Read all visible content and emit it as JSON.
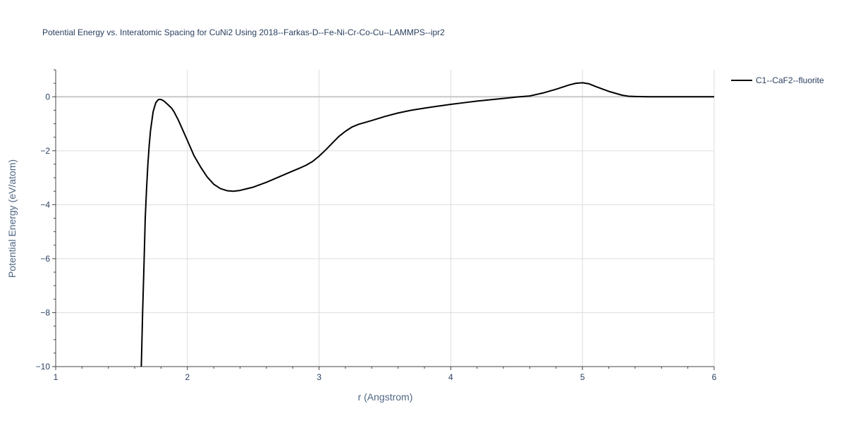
{
  "chart_data": {
    "type": "line",
    "title": "Potential Energy vs. Interatomic Spacing for CuNi2 Using 2018--Farkas-D--Fe-Ni-Cr-Co-Cu--LAMMPS--ipr2",
    "xlabel": "r (Angstrom)",
    "ylabel": "Potential Energy (eV/atom)",
    "xlim": [
      1,
      6
    ],
    "ylim": [
      -10,
      1
    ],
    "xticks": [
      1,
      2,
      3,
      4,
      5,
      6
    ],
    "yticks": [
      0,
      -2,
      -4,
      -6,
      -8,
      -10
    ],
    "ytick_labels": [
      "0",
      "−2",
      "−4",
      "−6",
      "−8",
      "−10"
    ],
    "grid": true,
    "legend_position": "top-right",
    "series": [
      {
        "name": "C1--CaF2--fluorite",
        "color": "#000000",
        "x": [
          1.65,
          1.66,
          1.67,
          1.68,
          1.69,
          1.7,
          1.71,
          1.72,
          1.74,
          1.76,
          1.78,
          1.8,
          1.82,
          1.85,
          1.88,
          1.9,
          1.93,
          1.96,
          2.0,
          2.05,
          2.1,
          2.15,
          2.2,
          2.25,
          2.3,
          2.35,
          2.4,
          2.45,
          2.5,
          2.6,
          2.7,
          2.8,
          2.85,
          2.9,
          2.95,
          3.0,
          3.05,
          3.1,
          3.15,
          3.2,
          3.25,
          3.3,
          3.4,
          3.5,
          3.6,
          3.7,
          3.8,
          3.9,
          4.0,
          4.1,
          4.2,
          4.3,
          4.4,
          4.5,
          4.6,
          4.7,
          4.8,
          4.9,
          4.95,
          5.0,
          5.05,
          5.1,
          5.2,
          5.3,
          5.35,
          5.4,
          5.5,
          5.6,
          5.8,
          6.0
        ],
        "y": [
          -10.0,
          -8.0,
          -6.3,
          -4.5,
          -3.4,
          -2.5,
          -1.8,
          -1.25,
          -0.55,
          -0.22,
          -0.1,
          -0.1,
          -0.15,
          -0.28,
          -0.42,
          -0.57,
          -0.85,
          -1.18,
          -1.62,
          -2.18,
          -2.6,
          -2.97,
          -3.24,
          -3.4,
          -3.48,
          -3.5,
          -3.47,
          -3.41,
          -3.35,
          -3.17,
          -2.96,
          -2.75,
          -2.65,
          -2.54,
          -2.4,
          -2.2,
          -1.97,
          -1.72,
          -1.47,
          -1.28,
          -1.12,
          -1.02,
          -0.88,
          -0.73,
          -0.6,
          -0.5,
          -0.42,
          -0.35,
          -0.28,
          -0.22,
          -0.16,
          -0.11,
          -0.06,
          -0.01,
          0.03,
          0.14,
          0.28,
          0.44,
          0.5,
          0.52,
          0.48,
          0.38,
          0.2,
          0.06,
          0.02,
          0.01,
          0.0,
          0.0,
          0.0,
          0.0
        ]
      }
    ]
  }
}
